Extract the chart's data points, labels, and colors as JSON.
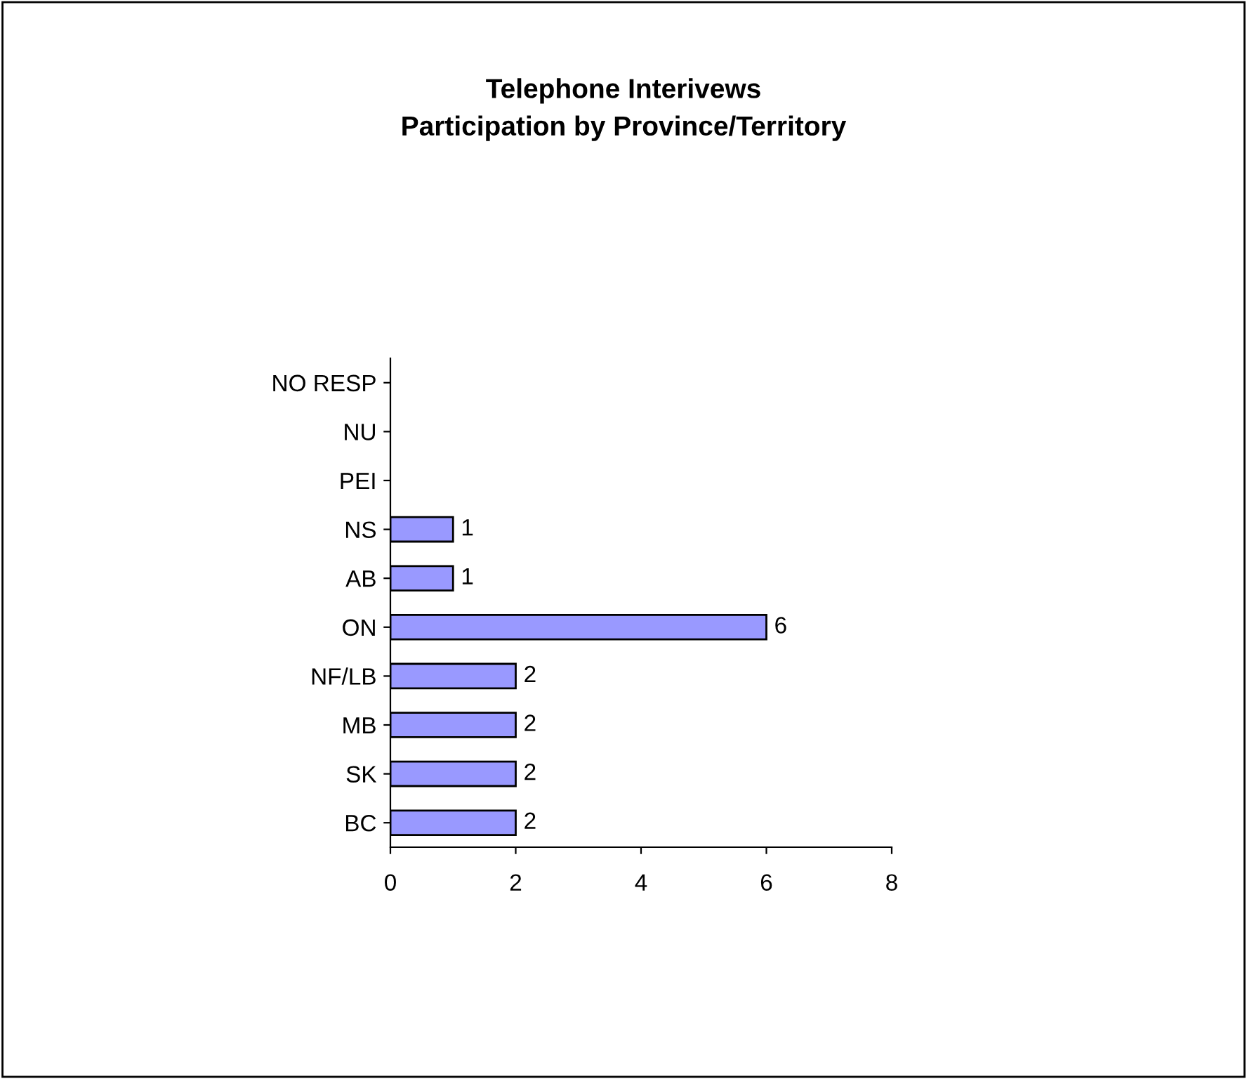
{
  "chart_data": {
    "type": "bar",
    "orientation": "horizontal",
    "title": "Telephone Interivews\nParticipation by Province/Territory",
    "categories": [
      "NO RESP",
      "NU",
      "PEI",
      "NS",
      "AB",
      "ON",
      "NF/LB",
      "MB",
      "SK",
      "BC"
    ],
    "values": [
      null,
      null,
      null,
      1,
      1,
      6,
      2,
      2,
      2,
      2
    ],
    "value_labels": [
      null,
      null,
      null,
      "1",
      "1",
      "6",
      "2",
      "2",
      "2",
      "2"
    ],
    "color": "#9999ff",
    "xlim": [
      0,
      8
    ],
    "xticks": [
      0,
      2,
      4,
      6,
      8
    ],
    "grid": false,
    "legend": false
  }
}
